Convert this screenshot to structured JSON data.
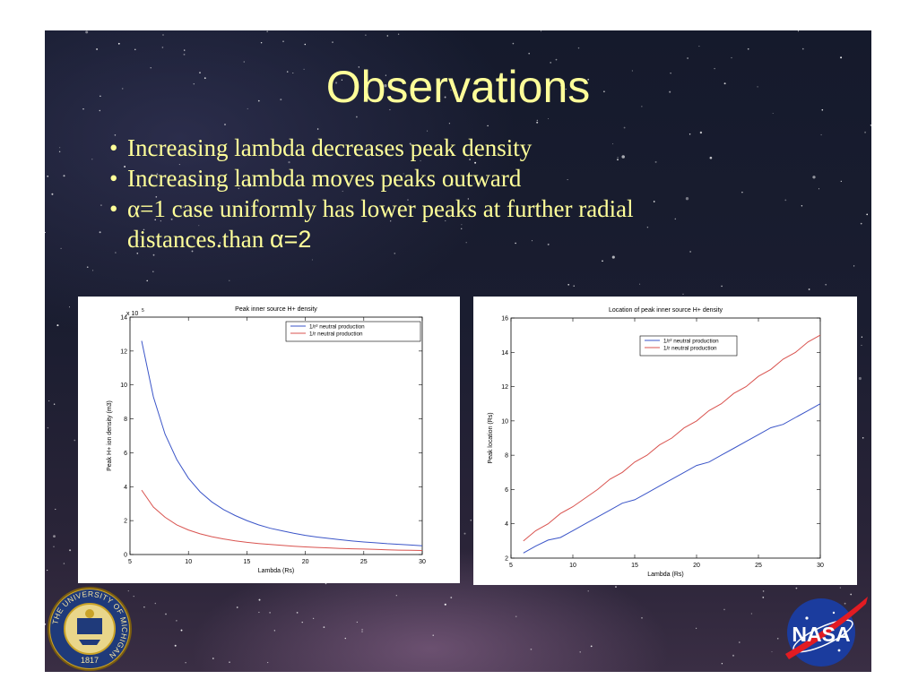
{
  "slide": {
    "title": "Observations",
    "bullet_char": "•",
    "bullets": [
      {
        "text": "Increasing lambda decreases peak density"
      },
      {
        "text": "Increasing lambda moves peaks outward"
      },
      {
        "text_pre": "α=1 case uniformly has lower peaks at further radial distances.than ",
        "text_post": "α=2"
      }
    ]
  },
  "logos": {
    "um": {
      "ring_text": "THE UNIVERSITY OF MICHIGAN",
      "year": "1817"
    },
    "nasa": {
      "text": "NASA"
    }
  },
  "colors": {
    "title": "#ffff99",
    "series_blue": "#3b55c8",
    "series_red": "#d9534f"
  },
  "chart_data": [
    {
      "type": "line",
      "title": "Peak inner source H+ density",
      "xlabel": "Lambda (Rs)",
      "ylabel": "Peak H+ ion density (m3)",
      "exponent": "x 10",
      "exponent_power": "5",
      "xlim": [
        5,
        30
      ],
      "ylim": [
        0,
        14
      ],
      "xticks": [
        "5",
        "10",
        "15",
        "20",
        "25",
        "30"
      ],
      "yticks": [
        "0",
        "2",
        "4",
        "6",
        "8",
        "10",
        "12",
        "14"
      ],
      "legend_position": "top-right",
      "x": [
        6,
        7,
        8,
        9,
        10,
        11,
        12,
        13,
        14,
        15,
        16,
        17,
        18,
        19,
        20,
        21,
        22,
        23,
        24,
        25,
        26,
        27,
        28,
        29,
        30
      ],
      "series": [
        {
          "name": "1/r² neutral production",
          "color": "#3b55c8",
          "values": [
            12.6,
            9.3,
            7.1,
            5.6,
            4.5,
            3.7,
            3.1,
            2.65,
            2.3,
            2.0,
            1.75,
            1.55,
            1.4,
            1.25,
            1.13,
            1.03,
            0.95,
            0.87,
            0.8,
            0.74,
            0.69,
            0.64,
            0.6,
            0.56,
            0.52
          ]
        },
        {
          "name": "1/r neutral production",
          "color": "#d9534f",
          "values": [
            3.8,
            2.8,
            2.2,
            1.75,
            1.45,
            1.22,
            1.05,
            0.92,
            0.81,
            0.72,
            0.65,
            0.59,
            0.54,
            0.49,
            0.45,
            0.42,
            0.39,
            0.36,
            0.34,
            0.32,
            0.3,
            0.28,
            0.26,
            0.25,
            0.24
          ]
        }
      ]
    },
    {
      "type": "line",
      "title": "Location of peak inner source H+ density",
      "xlabel": "Lambda (Rs)",
      "ylabel": "Peak location (Rs)",
      "xlim": [
        5,
        30
      ],
      "ylim": [
        2,
        16
      ],
      "xticks": [
        "5",
        "10",
        "15",
        "20",
        "25",
        "30"
      ],
      "yticks": [
        "2",
        "4",
        "6",
        "8",
        "10",
        "12",
        "14",
        "16"
      ],
      "legend_position": "top-center",
      "x": [
        6,
        7,
        8,
        9,
        10,
        11,
        12,
        13,
        14,
        15,
        16,
        17,
        18,
        19,
        20,
        21,
        22,
        23,
        24,
        25,
        26,
        27,
        28,
        29,
        30
      ],
      "series": [
        {
          "name": "1/r² neutral production",
          "color": "#3b55c8",
          "values": [
            2.3,
            2.7,
            3.05,
            3.2,
            3.6,
            4.0,
            4.4,
            4.8,
            5.2,
            5.4,
            5.8,
            6.2,
            6.6,
            7.0,
            7.4,
            7.6,
            8.0,
            8.4,
            8.8,
            9.2,
            9.6,
            9.8,
            10.2,
            10.6,
            11.0
          ]
        },
        {
          "name": "1/r neutral production",
          "color": "#d9534f",
          "values": [
            3.0,
            3.6,
            4.0,
            4.6,
            5.0,
            5.5,
            6.0,
            6.6,
            7.0,
            7.6,
            8.0,
            8.6,
            9.0,
            9.6,
            10.0,
            10.6,
            11.0,
            11.6,
            12.0,
            12.6,
            13.0,
            13.6,
            14.0,
            14.6,
            15.0
          ]
        }
      ]
    }
  ]
}
